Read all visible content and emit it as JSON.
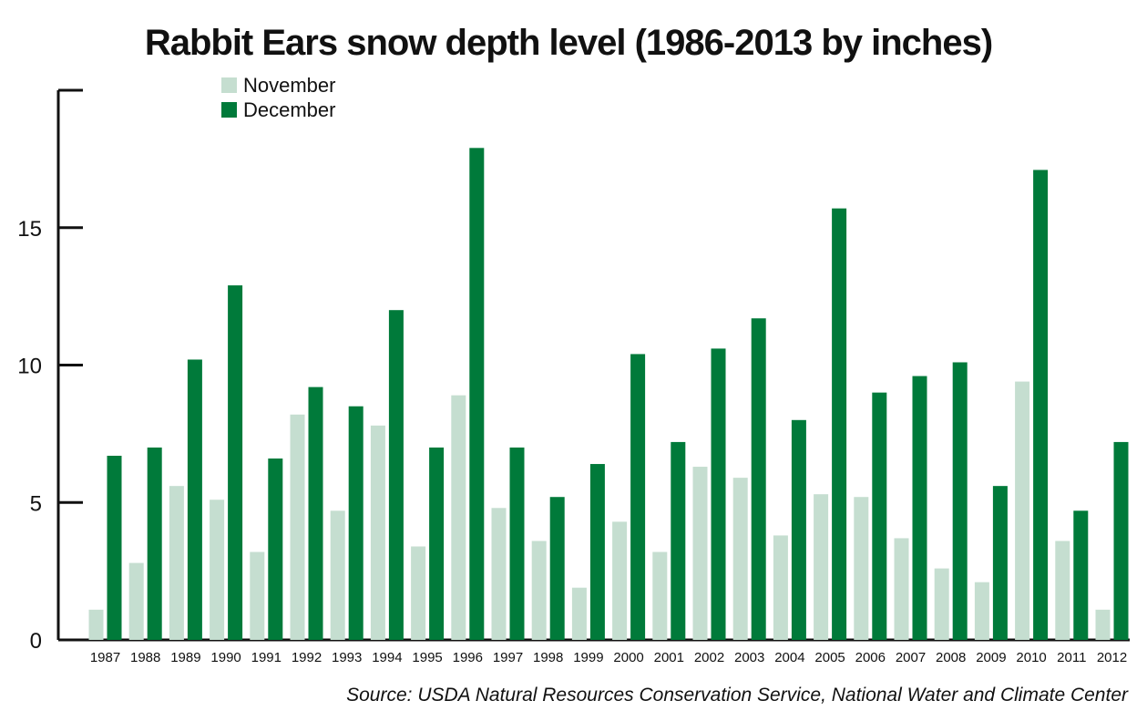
{
  "chart_data": {
    "type": "bar",
    "title": "Rabbit Ears snow depth level (1986-2013 by inches)",
    "source": "Source: USDA Natural Resources Conservation Service, National Water and Climate Center",
    "categories": [
      "1987",
      "1988",
      "1989",
      "1990",
      "1991",
      "1992",
      "1993",
      "1994",
      "1995",
      "1996",
      "1997",
      "1998",
      "1999",
      "2000",
      "2001",
      "2002",
      "2003",
      "2004",
      "2005",
      "2006",
      "2007",
      "2008",
      "2009",
      "2010",
      "2011",
      "2012"
    ],
    "series": [
      {
        "name": "November",
        "color": "#c5ded0",
        "values": [
          1.1,
          2.8,
          5.6,
          5.1,
          3.2,
          8.2,
          4.7,
          7.8,
          3.4,
          8.9,
          4.8,
          3.6,
          1.9,
          4.3,
          3.2,
          6.3,
          5.9,
          3.8,
          5.3,
          5.2,
          3.7,
          2.6,
          2.1,
          9.4,
          3.6,
          1.1
        ]
      },
      {
        "name": "December",
        "color": "#007a3a",
        "values": [
          6.7,
          7.0,
          10.2,
          12.9,
          6.6,
          9.2,
          8.5,
          12.0,
          7.0,
          17.9,
          7.0,
          5.2,
          6.4,
          10.4,
          7.2,
          10.6,
          11.7,
          8.0,
          15.7,
          9.0,
          9.6,
          10.1,
          5.6,
          17.1,
          4.7,
          7.2
        ]
      }
    ],
    "yticks": [
      "0",
      "5",
      "10",
      "15"
    ],
    "ylim": [
      0,
      20
    ],
    "legend_position": "top-left",
    "grid": false
  }
}
